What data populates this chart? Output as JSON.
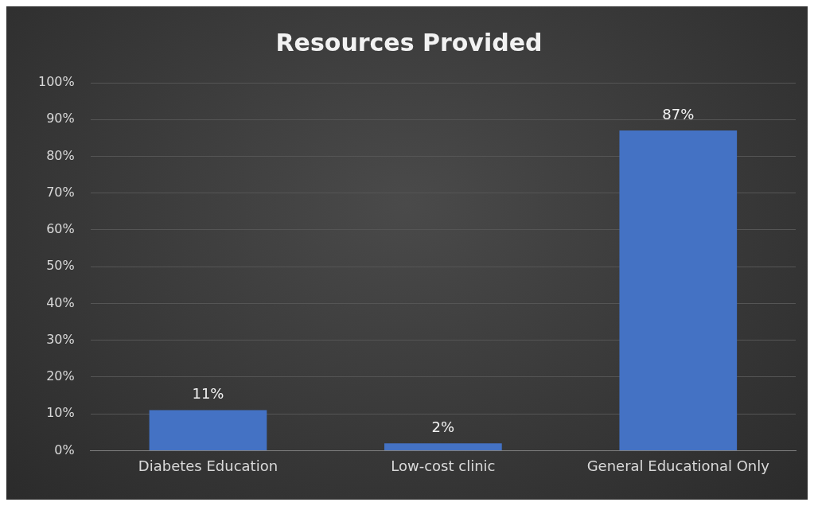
{
  "chart_data": {
    "type": "bar",
    "title": "Resources Provided",
    "categories": [
      "Diabetes Education",
      "Low-cost clinic",
      "General Educational Only"
    ],
    "values": [
      11,
      2,
      87
    ],
    "value_labels": [
      "11%",
      "2%",
      "87%"
    ],
    "color": "#4472c4",
    "ylim": [
      0,
      100
    ],
    "yticks": [
      {
        "value": 0,
        "label": "0%"
      },
      {
        "value": 10,
        "label": "10%"
      },
      {
        "value": 20,
        "label": "20%"
      },
      {
        "value": 30,
        "label": "30%"
      },
      {
        "value": 40,
        "label": "40%"
      },
      {
        "value": 50,
        "label": "50%"
      },
      {
        "value": 60,
        "label": "60%"
      },
      {
        "value": 70,
        "label": "70%"
      },
      {
        "value": 80,
        "label": "80%"
      },
      {
        "value": 90,
        "label": "90%"
      },
      {
        "value": 100,
        "label": "100%"
      }
    ],
    "grid": "y",
    "legend": false
  }
}
